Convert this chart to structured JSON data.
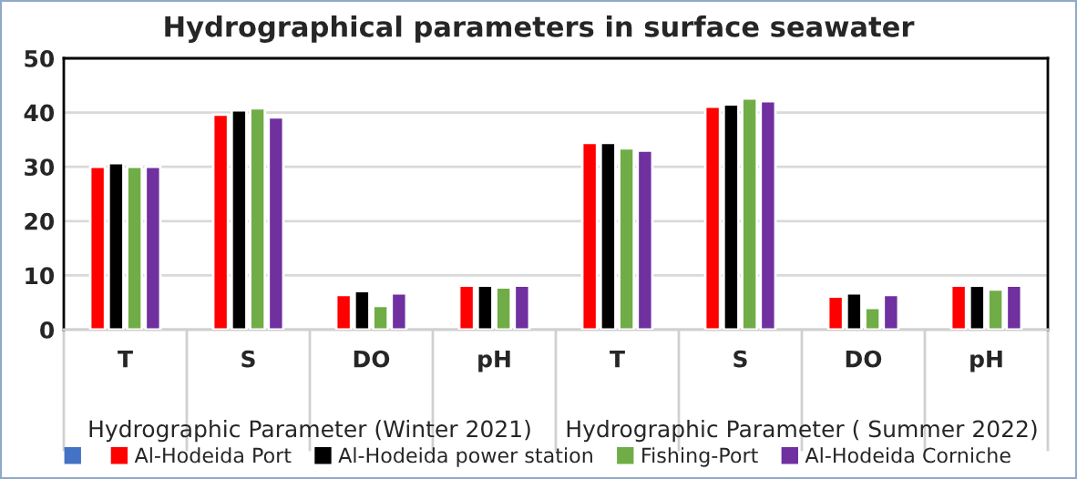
{
  "chart_data": {
    "type": "bar",
    "title": "Hydrographical parameters in surface seawater",
    "categories": [
      "T",
      "S",
      "DO",
      "pH",
      "T",
      "S",
      "DO",
      "pH"
    ],
    "annotations": [
      "Hydrographic Parameter (Winter 2021)",
      "Hydrographic Parameter ( Summer 2022)"
    ],
    "series": [
      {
        "color": "#4472c4",
        "values": [
          null,
          null,
          null,
          null,
          null,
          null,
          null,
          null
        ]
      },
      {
        "name": "Al-Hodeida Port",
        "color": "#ff0000",
        "values": [
          30.0,
          39.6,
          6.4,
          8.1,
          34.4,
          41.1,
          6.1,
          8.1
        ]
      },
      {
        "name": "Al-Hodeida power station",
        "color": "#000000",
        "values": [
          30.7,
          40.4,
          7.1,
          8.1,
          34.4,
          41.5,
          6.7,
          8.1
        ]
      },
      {
        "name": "Fishing-Port",
        "color": "#70ad47",
        "values": [
          30.0,
          40.8,
          4.4,
          7.8,
          33.4,
          42.6,
          4.0,
          7.4
        ]
      },
      {
        "name": "Al-Hodeida Corniche",
        "color": "#7030a0",
        "values": [
          30.0,
          39.1,
          6.7,
          8.1,
          33.0,
          42.1,
          6.4,
          8.1
        ]
      }
    ],
    "ylim": [
      0,
      50
    ],
    "yticks": [
      0,
      10,
      20,
      30,
      40,
      50
    ],
    "grid": "y",
    "legend": "bottom"
  }
}
